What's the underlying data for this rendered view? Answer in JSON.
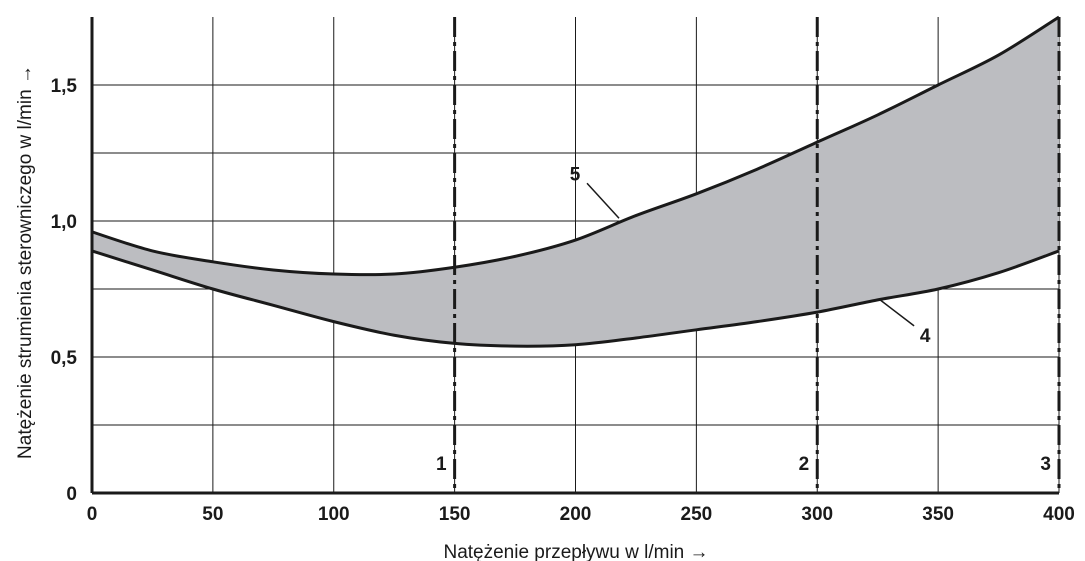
{
  "chart_data": {
    "type": "area",
    "xlabel": "Natężenie przepływu w l/min →",
    "ylabel": "Natężenie strumienia sterowniczego w l/min →",
    "xlim": [
      0,
      400
    ],
    "ylim": [
      0,
      1.75
    ],
    "x_ticks": [
      "0",
      "50",
      "100",
      "150",
      "200",
      "250",
      "300",
      "350",
      "400"
    ],
    "y_ticks": [
      {
        "value": 0,
        "label": "0"
      },
      {
        "value": 0.5,
        "label": "0,5"
      },
      {
        "value": 1.0,
        "label": "1,0"
      },
      {
        "value": 1.5,
        "label": "1,5"
      }
    ],
    "grid": true,
    "series": [
      {
        "name": "5",
        "x": [
          0,
          25,
          50,
          75,
          100,
          125,
          150,
          175,
          200,
          225,
          250,
          275,
          300,
          325,
          350,
          375,
          400
        ],
        "y": [
          0.96,
          0.89,
          0.85,
          0.82,
          0.805,
          0.805,
          0.83,
          0.87,
          0.93,
          1.02,
          1.1,
          1.19,
          1.29,
          1.39,
          1.5,
          1.61,
          1.75
        ]
      },
      {
        "name": "4",
        "x": [
          0,
          25,
          50,
          75,
          100,
          125,
          150,
          175,
          200,
          225,
          250,
          275,
          300,
          325,
          350,
          375,
          400
        ],
        "y": [
          0.89,
          0.82,
          0.75,
          0.69,
          0.63,
          0.58,
          0.55,
          0.54,
          0.545,
          0.57,
          0.6,
          0.63,
          0.665,
          0.71,
          0.75,
          0.81,
          0.89
        ]
      }
    ],
    "vertical_markers": [
      {
        "x": 150,
        "label": "1"
      },
      {
        "x": 300,
        "label": "2"
      },
      {
        "x": 400,
        "label": "3"
      }
    ],
    "colors": {
      "fill": "#bcbdc1",
      "line": "#1a1a1a",
      "grid": "#1a1a1a"
    }
  }
}
